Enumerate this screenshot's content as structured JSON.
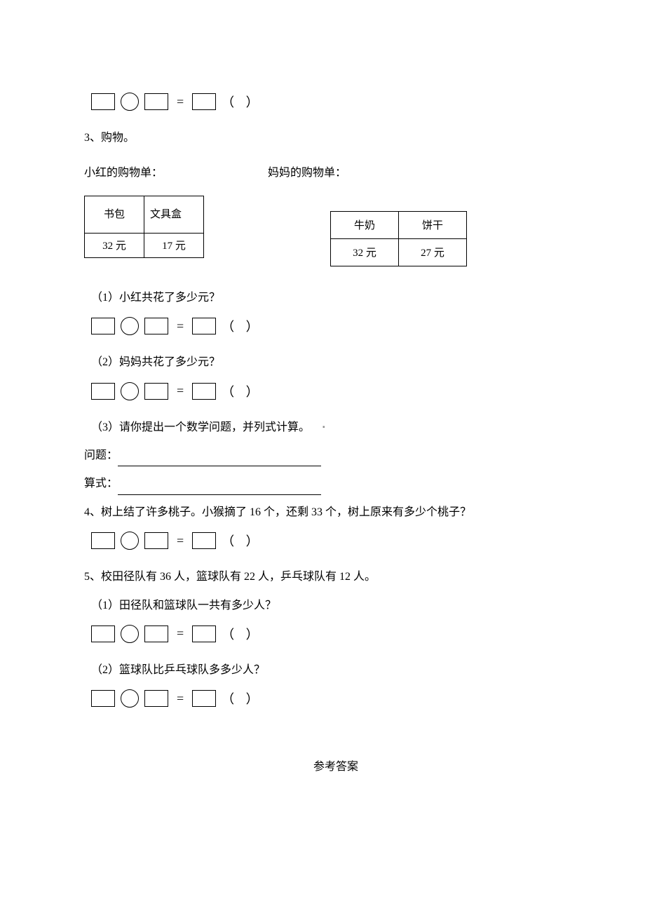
{
  "q3": {
    "number": "3、",
    "title": "购物。",
    "list1_label": "小红的购物单：",
    "list2_label": "妈妈的购物单：",
    "table1": {
      "h1": "书包",
      "h2": "文具盒",
      "v1": "32 元",
      "v2": "17 元"
    },
    "table2": {
      "h1": "牛奶",
      "h2": "饼干",
      "v1": "32 元",
      "v2": "27 元"
    },
    "sub1": "（1）小红共花了多少元？",
    "sub2": "（2）妈妈共花了多少元？",
    "sub3": "（3）请你提出一个数学问题，并列式计算。",
    "problem_label": "问题：",
    "formula_label": "算式："
  },
  "q4": {
    "text": "4、树上结了许多桃子。小猴摘了 16 个，还剩 33 个，树上原来有多少个桃子？"
  },
  "q5": {
    "intro": "5、校田径队有 36 人，篮球队有 22 人，乒乓球队有 12 人。",
    "sub1": "（1）田径队和篮球队一共有多少人？",
    "sub2": "（2）篮球队比乒乓球队多多少人？"
  },
  "equals": "=",
  "paren": "（  ）",
  "dot": "▪",
  "answers_heading": "参考答案"
}
